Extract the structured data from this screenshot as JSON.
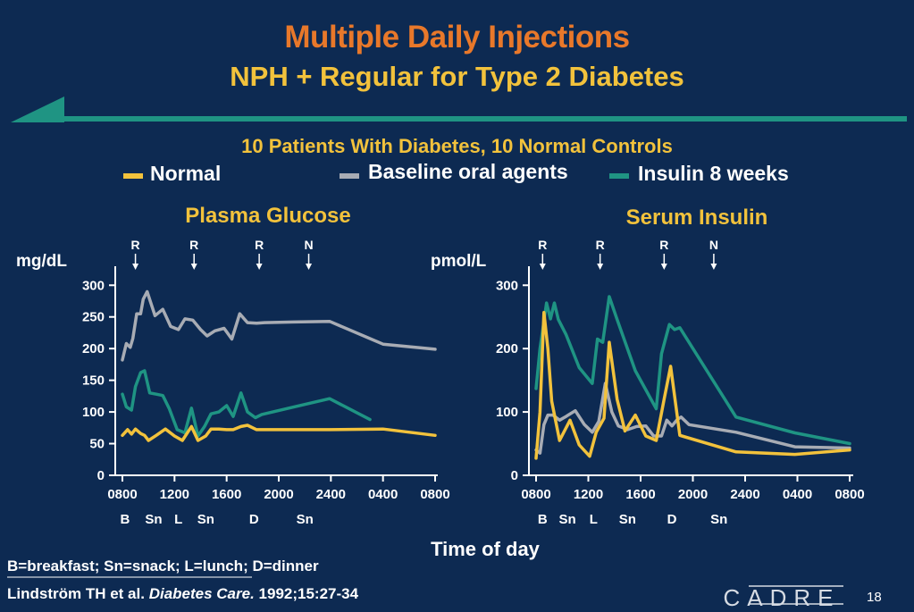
{
  "header": {
    "title": "Multiple Daily Injections",
    "subtitle": "NPH + Regular for Type 2 Diabetes",
    "study_note": "10 Patients With Diabetes, 10 Normal Controls"
  },
  "legend": {
    "placement": "top",
    "items": [
      {
        "label": "Normal",
        "color": "#f2c23c"
      },
      {
        "label": "Baseline oral agents",
        "color": "#a8acb4"
      },
      {
        "label": "Insulin 8 weeks",
        "color": "#1f9483"
      }
    ]
  },
  "footer": {
    "xlabel": "Time of day",
    "abbreviations": "B=breakfast; Sn=snack; L=lunch; D=dinner",
    "citation_authors": "Lindström TH et al. ",
    "citation_journal": "Diabetes Care.",
    "citation_details": " 1992;15:27-34",
    "logo_text": "CADRE",
    "page_number": "18"
  },
  "colors": {
    "background": "#0d2a52",
    "accent_teal": "#1f9483",
    "normal": "#f2c23c",
    "baseline": "#a8acb4",
    "insulin": "#1f9483"
  },
  "chart_data": [
    {
      "type": "line",
      "title": "Plasma Glucose",
      "ylabel": "mg/dL",
      "xlabel": "Time of day",
      "x_ticks": [
        "0800",
        "1200",
        "1600",
        "2000",
        "2400",
        "0400",
        "0800"
      ],
      "x_tick_hours": [
        8,
        12,
        16,
        20,
        24,
        28,
        32
      ],
      "xlim": [
        8,
        32
      ],
      "yticks": [
        0,
        50,
        100,
        150,
        200,
        250,
        300
      ],
      "ylim": [
        0,
        330
      ],
      "grid": false,
      "meal_labels": [
        {
          "label": "B",
          "hour": 8.2
        },
        {
          "label": "Sn",
          "hour": 10.4
        },
        {
          "label": "L",
          "hour": 12.3
        },
        {
          "label": "Sn",
          "hour": 14.4
        },
        {
          "label": "D",
          "hour": 18.1
        },
        {
          "label": "Sn",
          "hour": 22.0
        }
      ],
      "injection_arrows": [
        {
          "label": "R",
          "hour": 9.0
        },
        {
          "label": "R",
          "hour": 13.5
        },
        {
          "label": "R",
          "hour": 18.5
        },
        {
          "label": "N",
          "hour": 22.3
        }
      ],
      "series": [
        {
          "name": "Baseline oral agents",
          "x": [
            8.0,
            8.3,
            8.6,
            8.8,
            9.1,
            9.4,
            9.6,
            9.9,
            10.5,
            11.1,
            11.7,
            12.3,
            12.8,
            13.4,
            14.0,
            14.5,
            15.1,
            15.8,
            16.4,
            17.0,
            17.6,
            18.3,
            18.9,
            21.2,
            23.9,
            28.0,
            32.0
          ],
          "y": [
            182,
            208,
            202,
            216,
            255,
            255,
            278,
            290,
            252,
            262,
            235,
            230,
            247,
            245,
            230,
            220,
            228,
            232,
            215,
            255,
            241,
            240,
            241,
            242,
            243,
            207,
            199
          ]
        },
        {
          "name": "Insulin 8 weeks",
          "x": [
            8.0,
            8.3,
            8.7,
            9.0,
            9.4,
            9.7,
            10.1,
            10.6,
            11.1,
            11.6,
            12.2,
            12.8,
            13.3,
            13.8,
            14.3,
            14.8,
            15.4,
            16.0,
            16.5,
            17.1,
            17.6,
            18.2,
            18.7,
            21.4,
            23.9,
            27.0
          ],
          "y": [
            128,
            108,
            103,
            140,
            162,
            165,
            130,
            128,
            126,
            105,
            72,
            67,
            106,
            62,
            77,
            97,
            100,
            110,
            93,
            130,
            100,
            91,
            96,
            109,
            121,
            88
          ]
        },
        {
          "name": "Normal",
          "x": [
            8.0,
            8.4,
            8.7,
            9.0,
            9.4,
            9.7,
            10.0,
            10.6,
            11.3,
            12.0,
            12.6,
            13.3,
            13.8,
            14.4,
            14.8,
            15.4,
            16.0,
            16.5,
            17.1,
            17.6,
            18.3,
            18.7,
            21.4,
            23.9,
            28.0,
            32.0
          ],
          "y": [
            63,
            72,
            65,
            73,
            66,
            63,
            55,
            63,
            73,
            62,
            55,
            77,
            55,
            62,
            73,
            73,
            72,
            72,
            77,
            79,
            72,
            72,
            72,
            72,
            73,
            63
          ]
        }
      ]
    },
    {
      "type": "line",
      "title": "Serum Insulin",
      "ylabel": "pmol/L",
      "xlabel": "Time of day",
      "x_ticks": [
        "0800",
        "1200",
        "1600",
        "2000",
        "2400",
        "0400",
        "0800"
      ],
      "x_tick_hours": [
        8,
        12,
        16,
        20,
        24,
        28,
        32
      ],
      "xlim": [
        8,
        32
      ],
      "yticks": [
        0,
        100,
        200,
        300
      ],
      "ylim": [
        0,
        330
      ],
      "grid": false,
      "meal_labels": [
        {
          "label": "B",
          "hour": 8.5
        },
        {
          "label": "Sn",
          "hour": 10.4
        },
        {
          "label": "L",
          "hour": 12.4
        },
        {
          "label": "Sn",
          "hour": 15.0
        },
        {
          "label": "D",
          "hour": 18.4
        },
        {
          "label": "Sn",
          "hour": 22.0
        }
      ],
      "injection_arrows": [
        {
          "label": "R",
          "hour": 8.5
        },
        {
          "label": "R",
          "hour": 12.9
        },
        {
          "label": "R",
          "hour": 17.8
        },
        {
          "label": "N",
          "hour": 21.6
        }
      ],
      "series": [
        {
          "name": "Insulin 8 weeks",
          "x": [
            8.0,
            8.3,
            8.8,
            9.1,
            9.4,
            9.7,
            10.3,
            11.3,
            12.3,
            12.7,
            13.1,
            13.6,
            14.2,
            15.6,
            17.2,
            17.6,
            18.2,
            18.6,
            19.0,
            23.3,
            27.8,
            32.0
          ],
          "y": [
            137,
            200,
            272,
            247,
            272,
            246,
            222,
            170,
            145,
            215,
            210,
            282,
            246,
            165,
            105,
            192,
            238,
            230,
            233,
            92,
            67,
            50
          ]
        },
        {
          "name": "Baseline oral agents",
          "x": [
            8.0,
            8.3,
            8.6,
            8.9,
            9.3,
            9.8,
            10.3,
            11.0,
            11.7,
            12.3,
            12.8,
            13.3,
            13.8,
            14.3,
            15.0,
            15.7,
            16.4,
            17.0,
            17.6,
            18.0,
            18.4,
            18.8,
            19.1,
            19.7,
            23.3,
            27.8,
            32.0
          ],
          "y": [
            40,
            35,
            80,
            95,
            95,
            87,
            93,
            102,
            80,
            68,
            85,
            145,
            100,
            78,
            72,
            77,
            78,
            62,
            62,
            87,
            78,
            88,
            92,
            80,
            68,
            45,
            43
          ]
        },
        {
          "name": "Normal",
          "x": [
            8.0,
            8.3,
            8.6,
            8.9,
            9.2,
            9.8,
            10.6,
            11.3,
            12.1,
            12.6,
            13.2,
            13.6,
            14.2,
            14.8,
            15.6,
            16.4,
            17.2,
            17.8,
            18.3,
            19.0,
            23.3,
            27.8,
            32.0
          ],
          "y": [
            27,
            100,
            257,
            200,
            117,
            55,
            87,
            48,
            30,
            68,
            90,
            210,
            120,
            70,
            95,
            62,
            55,
            120,
            172,
            63,
            37,
            33,
            40
          ]
        }
      ]
    }
  ]
}
